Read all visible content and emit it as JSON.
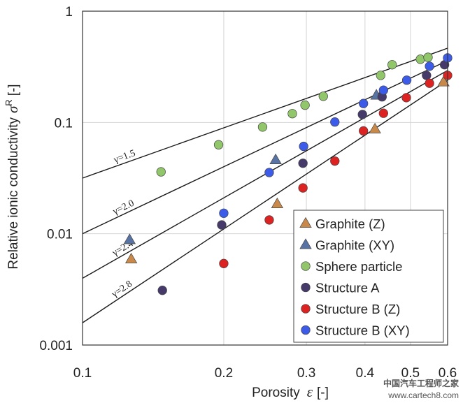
{
  "chart_data": {
    "type": "scatter",
    "title": "",
    "xlabel": "Porosity",
    "xlabel_symbol": "ε",
    "xlabel_unit": "[-]",
    "ylabel": "Relative ionic conductivity",
    "ylabel_symbol": "σ",
    "ylabel_sup": "R",
    "ylabel_unit": "[-]",
    "xscale": "log",
    "yscale": "log",
    "xlim": [
      0.1,
      0.6
    ],
    "ylim": [
      0.001,
      1
    ],
    "grid": true,
    "legend_position": "bottom-right",
    "x_ticks": [
      {
        "value": 0.1,
        "label": "0.1"
      },
      {
        "value": 0.2,
        "label": "0.2"
      },
      {
        "value": 0.3,
        "label": "0.3"
      },
      {
        "value": 0.4,
        "label": "0.4"
      },
      {
        "value": 0.5,
        "label": "0.5"
      },
      {
        "value": 0.6,
        "label": "0.6"
      }
    ],
    "y_ticks": [
      {
        "value": 0.001,
        "label": "0.001"
      },
      {
        "value": 0.01,
        "label": "0.01"
      },
      {
        "value": 0.1,
        "label": "0.1"
      },
      {
        "value": 1,
        "label": "1"
      }
    ],
    "bruggeman_lines": [
      {
        "gamma": 1.5,
        "label": "γ=1.5",
        "label_at": 0.118
      },
      {
        "gamma": 2.0,
        "label": "γ=2.0",
        "label_at": 0.118
      },
      {
        "gamma": 2.4,
        "label": "γ=2.4",
        "label_at": 0.118
      },
      {
        "gamma": 2.8,
        "label": "γ=2.8",
        "label_at": 0.118
      }
    ],
    "series": [
      {
        "name": "Graphite (Z)",
        "marker": "triangle",
        "color": "#c8894a",
        "points": [
          [
            0.127,
            0.0059
          ],
          [
            0.26,
            0.0185
          ],
          [
            0.42,
            0.087
          ],
          [
            0.588,
            0.23
          ]
        ]
      },
      {
        "name": "Graphite (XY)",
        "marker": "triangle",
        "color": "#5873a3",
        "points": [
          [
            0.126,
            0.0088
          ],
          [
            0.258,
            0.046
          ],
          [
            0.423,
            0.175
          ]
        ]
      },
      {
        "name": "Sphere particle",
        "marker": "circle",
        "color": "#92c66a",
        "points": [
          [
            0.147,
            0.036
          ],
          [
            0.195,
            0.063
          ],
          [
            0.242,
            0.091
          ],
          [
            0.28,
            0.12
          ],
          [
            0.298,
            0.143
          ],
          [
            0.326,
            0.172
          ],
          [
            0.432,
            0.265
          ],
          [
            0.457,
            0.33
          ],
          [
            0.525,
            0.37
          ],
          [
            0.545,
            0.385
          ]
        ]
      },
      {
        "name": "Structure A",
        "marker": "circle",
        "color": "#463a6b",
        "points": [
          [
            0.148,
            0.0031
          ],
          [
            0.198,
            0.012
          ],
          [
            0.295,
            0.043
          ],
          [
            0.395,
            0.118
          ],
          [
            0.435,
            0.17
          ],
          [
            0.541,
            0.265
          ],
          [
            0.591,
            0.33
          ]
        ]
      },
      {
        "name": "Structure B (Z)",
        "marker": "circle",
        "color": "#dd2222",
        "points": [
          [
            0.2,
            0.0054
          ],
          [
            0.25,
            0.0133
          ],
          [
            0.295,
            0.0258
          ],
          [
            0.345,
            0.045
          ],
          [
            0.397,
            0.084
          ],
          [
            0.438,
            0.121
          ],
          [
            0.49,
            0.167
          ],
          [
            0.549,
            0.225
          ],
          [
            0.6,
            0.265
          ]
        ]
      },
      {
        "name": "Structure B (XY)",
        "marker": "circle",
        "color": "#3c5be8",
        "points": [
          [
            0.2,
            0.0153
          ],
          [
            0.25,
            0.0355
          ],
          [
            0.296,
            0.061
          ],
          [
            0.345,
            0.101
          ],
          [
            0.397,
            0.148
          ],
          [
            0.438,
            0.195
          ],
          [
            0.491,
            0.24
          ],
          [
            0.549,
            0.32
          ],
          [
            0.6,
            0.38
          ]
        ]
      }
    ]
  },
  "watermark": "中国汽车工程师之家",
  "watermark_url": "www.cartech8.com"
}
